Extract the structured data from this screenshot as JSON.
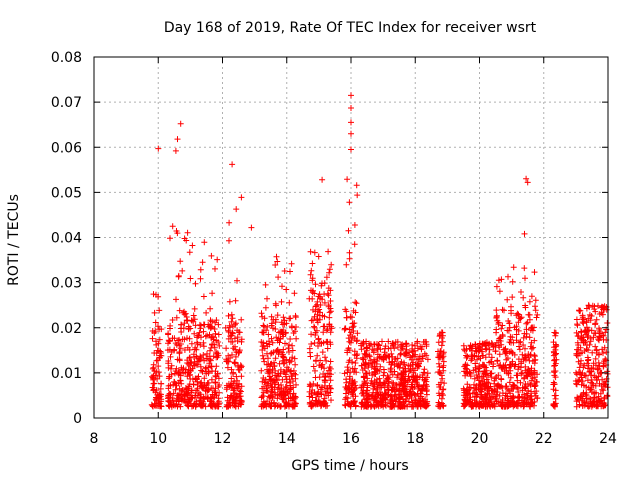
{
  "chart_data": {
    "type": "scatter",
    "title": "Day 168 of 2019, Rate Of TEC Index for receiver wsrt",
    "xlabel": "GPS time / hours",
    "ylabel": "ROTI / TECUs",
    "xlim": [
      8,
      24
    ],
    "ylim": [
      0,
      0.08
    ],
    "xticks": [
      "8",
      "10",
      "12",
      "14",
      "16",
      "18",
      "20",
      "22",
      "24"
    ],
    "yticks": [
      "0",
      "0.01",
      "0.02",
      "0.03",
      "0.04",
      "0.05",
      "0.06",
      "0.07",
      "0.08"
    ],
    "grid": true,
    "marker": "+",
    "color": "#ff0000",
    "clusters": [
      {
        "start": 9.8,
        "end": 10.1,
        "base_max": 0.02,
        "notes": "peaks near 0.028 and 0.045"
      },
      {
        "start": 10.3,
        "end": 11.0,
        "base_max": 0.024,
        "notes": "peaks near 0.043"
      },
      {
        "start": 11.0,
        "end": 11.9,
        "base_max": 0.022,
        "notes": "peaks near 0.039"
      },
      {
        "start": 12.1,
        "end": 12.6,
        "base_max": 0.022,
        "notes": "peaks near 0.049"
      },
      {
        "start": 13.2,
        "end": 14.3,
        "base_max": 0.023,
        "notes": "peaks near 0.036"
      },
      {
        "start": 14.7,
        "end": 15.4,
        "base_max": 0.03,
        "notes": "peaks near 0.038"
      },
      {
        "start": 15.8,
        "end": 16.2,
        "base_max": 0.026,
        "notes": "peaks near 0.055"
      },
      {
        "start": 16.3,
        "end": 18.4,
        "base_max": 0.016,
        "notes": "low activity"
      },
      {
        "start": 18.7,
        "end": 18.9,
        "base_max": 0.018,
        "notes": "short arc"
      },
      {
        "start": 19.5,
        "end": 20.5,
        "base_max": 0.016,
        "notes": "low activity"
      },
      {
        "start": 20.5,
        "end": 21.8,
        "base_max": 0.024,
        "notes": "peaks near 0.034"
      },
      {
        "start": 22.3,
        "end": 22.4,
        "base_max": 0.018,
        "notes": "short arc"
      },
      {
        "start": 23.0,
        "end": 24.0,
        "base_max": 0.024,
        "notes": "peaks near 0.024"
      }
    ],
    "outliers": [
      {
        "x": 10.0,
        "y": 0.0597
      },
      {
        "x": 10.55,
        "y": 0.0592
      },
      {
        "x": 10.6,
        "y": 0.0618
      },
      {
        "x": 10.7,
        "y": 0.0652
      },
      {
        "x": 12.3,
        "y": 0.0562
      },
      {
        "x": 12.9,
        "y": 0.0422
      },
      {
        "x": 15.1,
        "y": 0.0528
      },
      {
        "x": 16.0,
        "y": 0.0715
      },
      {
        "x": 16.0,
        "y": 0.0687
      },
      {
        "x": 16.0,
        "y": 0.0655
      },
      {
        "x": 16.0,
        "y": 0.063
      },
      {
        "x": 16.0,
        "y": 0.0595
      },
      {
        "x": 15.95,
        "y": 0.0478
      },
      {
        "x": 21.45,
        "y": 0.053
      },
      {
        "x": 21.5,
        "y": 0.0522
      },
      {
        "x": 21.4,
        "y": 0.0408
      }
    ]
  }
}
